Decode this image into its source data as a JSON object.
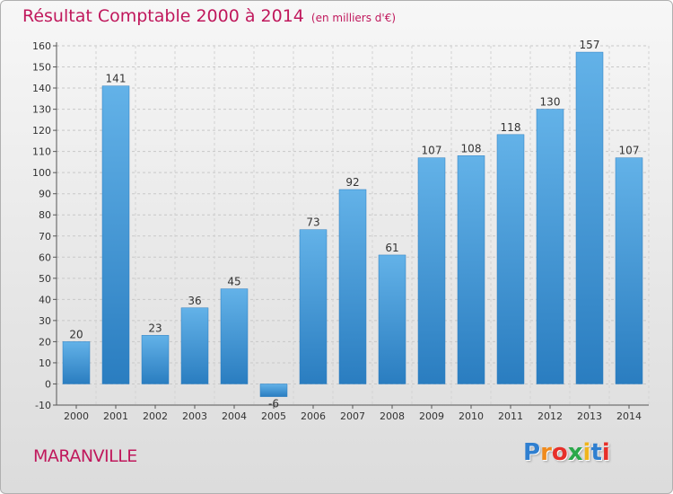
{
  "title": "Résultat Comptable 2000 à 2014",
  "unit": "(en milliers d'€)",
  "commune": "MARANVILLE",
  "logo": {
    "letters": [
      {
        "ch": "P",
        "color": "#2f7fd0"
      },
      {
        "ch": "r",
        "color": "#f08a1c"
      },
      {
        "ch": "o",
        "color": "#e7302a"
      },
      {
        "ch": "x",
        "color": "#2aa84a"
      },
      {
        "ch": "i",
        "color": "#f0b41c"
      },
      {
        "ch": "t",
        "color": "#2f7fd0"
      },
      {
        "ch": "i",
        "color": "#e7302a"
      }
    ]
  },
  "colors": {
    "bar_light": "#63b2e8",
    "bar_dark": "#2a7dc0",
    "title": "#c0185c"
  },
  "chart_data": {
    "type": "bar",
    "categories": [
      "2000",
      "2001",
      "2002",
      "2003",
      "2004",
      "2005",
      "2006",
      "2007",
      "2008",
      "2009",
      "2010",
      "2011",
      "2012",
      "2013",
      "2014"
    ],
    "values": [
      20,
      141,
      23,
      36,
      45,
      -6,
      73,
      92,
      61,
      107,
      108,
      118,
      130,
      157,
      107
    ],
    "labels": [
      "20",
      "141",
      "23",
      "36",
      "45",
      "-6",
      "73",
      "92",
      "61",
      "107",
      "108",
      "118",
      "130",
      "157",
      "107"
    ],
    "ylim": [
      -10,
      160
    ],
    "yticks": [
      -10,
      0,
      10,
      20,
      30,
      40,
      50,
      60,
      70,
      80,
      90,
      100,
      110,
      120,
      130,
      140,
      150,
      160
    ],
    "grid": true
  }
}
